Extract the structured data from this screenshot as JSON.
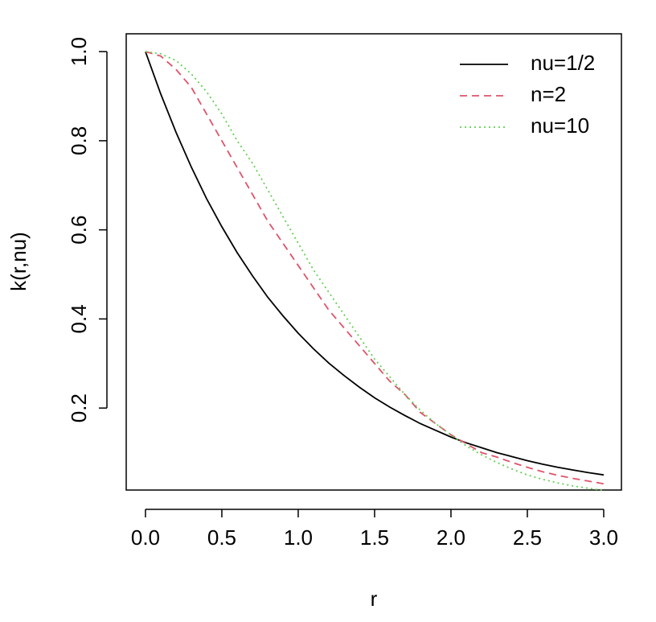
{
  "chart_data": {
    "type": "line",
    "xlabel": "r",
    "ylabel": "k(r,nu)",
    "x": [
      0,
      0.1,
      0.2,
      0.3,
      0.4,
      0.5,
      0.6,
      0.7,
      0.8,
      0.9,
      1.0,
      1.1,
      1.2,
      1.3,
      1.4,
      1.5,
      1.6,
      1.7,
      1.8,
      1.9,
      2.0,
      2.1,
      2.2,
      2.3,
      2.4,
      2.5,
      2.6,
      2.7,
      2.8,
      2.9,
      3.0
    ],
    "series": [
      {
        "name": "nu=1/2",
        "color": "#000000",
        "linestyle": "solid",
        "values": [
          1,
          0.905,
          0.819,
          0.741,
          0.67,
          0.607,
          0.549,
          0.497,
          0.449,
          0.407,
          0.368,
          0.333,
          0.301,
          0.273,
          0.247,
          0.223,
          0.202,
          0.183,
          0.165,
          0.15,
          0.135,
          0.122,
          0.111,
          0.1,
          0.091,
          0.082,
          0.074,
          0.067,
          0.061,
          0.055,
          0.05
        ]
      },
      {
        "name": "n=2",
        "color": "#df536b",
        "linestyle": "dashed",
        "values": [
          1,
          0.99,
          0.96,
          0.92,
          0.86,
          0.8,
          0.74,
          0.68,
          0.62,
          0.57,
          0.52,
          0.47,
          0.42,
          0.38,
          0.34,
          0.3,
          0.26,
          0.23,
          0.19,
          0.165,
          0.14,
          0.12,
          0.1,
          0.09,
          0.078,
          0.067,
          0.057,
          0.049,
          0.042,
          0.036,
          0.03
        ]
      },
      {
        "name": "nu=10",
        "color": "#61d04f",
        "linestyle": "dotted",
        "values": [
          1,
          0.995,
          0.98,
          0.95,
          0.91,
          0.86,
          0.8,
          0.75,
          0.69,
          0.63,
          0.57,
          0.51,
          0.46,
          0.41,
          0.36,
          0.31,
          0.27,
          0.23,
          0.195,
          0.165,
          0.14,
          0.115,
          0.095,
          0.078,
          0.063,
          0.05,
          0.04,
          0.032,
          0.025,
          0.02,
          0.015
        ]
      }
    ],
    "xlim": [
      -0.126,
      3.116
    ],
    "ylim": [
      0.016,
      1.04
    ],
    "xticks": [
      {
        "value": 0,
        "label": "0.0"
      },
      0.5,
      {
        "value": 1,
        "label": "1.0"
      },
      1.5,
      {
        "value": 2,
        "label": "2.0"
      },
      2.5,
      {
        "value": 3,
        "label": "3.0"
      }
    ],
    "yticks": [
      0.2,
      0.4,
      0.6,
      0.8,
      {
        "value": 1,
        "label": "1.0"
      }
    ],
    "legend": "topright"
  }
}
